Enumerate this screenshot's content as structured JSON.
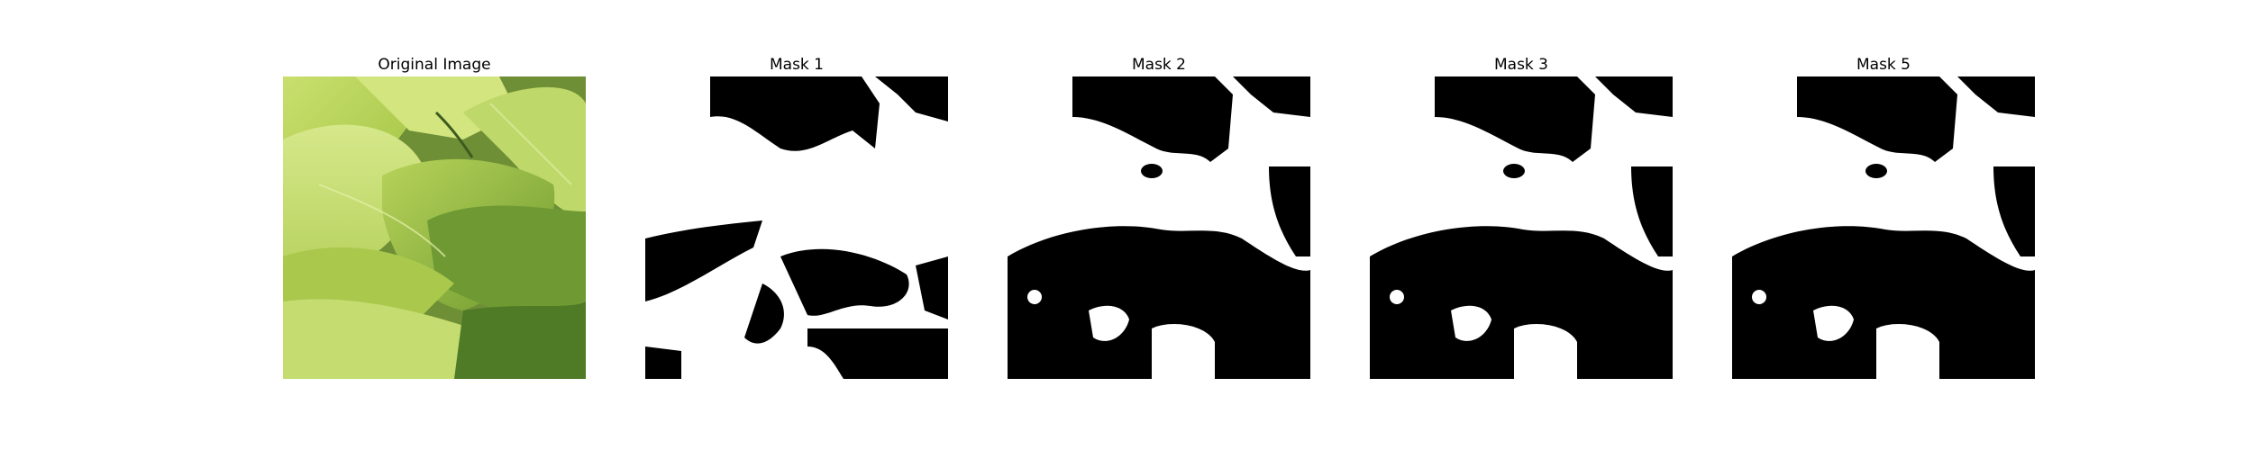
{
  "figure": {
    "panels": [
      {
        "title": "Original Image"
      },
      {
        "title": "Mask 1"
      },
      {
        "title": "Mask 2"
      },
      {
        "title": "Mask 3"
      },
      {
        "title": "Mask 5"
      }
    ]
  },
  "colors": {
    "mask_background": "#000000",
    "mask_foreground": "#ffffff",
    "leaf_light": "#c8df6a",
    "leaf_mid": "#a7c843",
    "leaf_dark": "#5d8a2a",
    "shadow": "#2f4a1c"
  }
}
